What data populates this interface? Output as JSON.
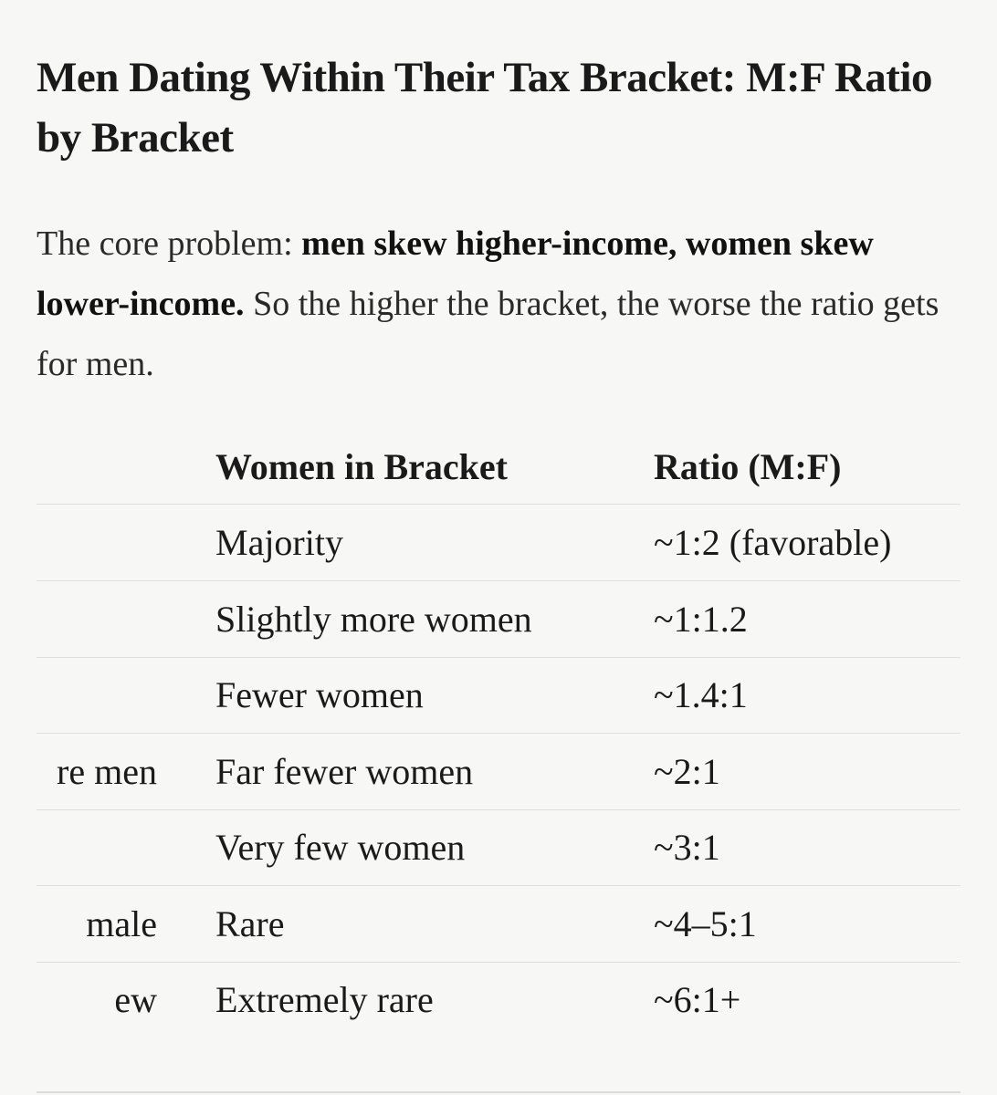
{
  "header": {
    "title": "Men Dating Within Their Tax Bracket: M:F Ratio by Bracket"
  },
  "intro": {
    "lead": "The core problem: ",
    "bold": "men skew higher-income, women skew lower-income.",
    "rest": " So the higher the bracket, the worse the ratio gets for men."
  },
  "table": {
    "columns": [
      "Women in Bracket",
      "Ratio (M:F)"
    ],
    "rows": [
      {
        "women": "Majority",
        "ratio": "~1:2 (favorable)"
      },
      {
        "women": "Slightly more women",
        "ratio": "~1:1.2"
      },
      {
        "women": "Fewer women",
        "ratio": "~1.4:1"
      },
      {
        "clipped": "re men",
        "women": "Far fewer women",
        "ratio": "~2:1"
      },
      {
        "women": "Very few women",
        "ratio": "~3:1"
      },
      {
        "clipped": "male",
        "women": "Rare",
        "ratio": "~4–5:1"
      },
      {
        "clipped": "ew",
        "women": "Extremely rare",
        "ratio": "~6:1+"
      }
    ]
  }
}
